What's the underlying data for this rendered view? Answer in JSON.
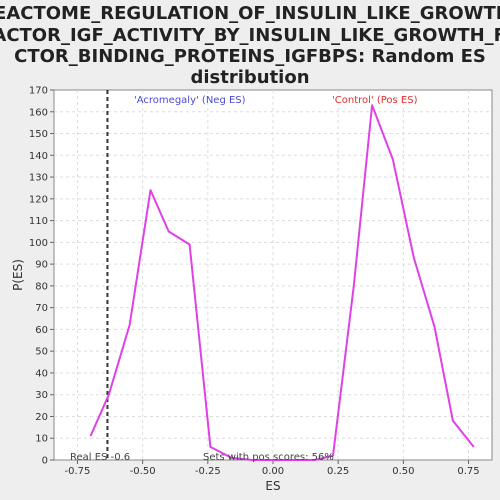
{
  "chart_data": {
    "type": "line",
    "title_lines": [
      "REACTOME_REGULATION_OF_INSULIN_LIKE_GROWTH_",
      "FACTOR_IGF_ACTIVITY_BY_INSULIN_LIKE_GROWTH_FA",
      "CTOR_BINDING_PROTEINS_IGFBPS: Random ES",
      "distribution"
    ],
    "xlabel": "ES",
    "ylabel": "P(ES)",
    "xlim": [
      -0.84,
      0.84
    ],
    "ylim": [
      0,
      170
    ],
    "x_ticks": [
      -0.75,
      -0.5,
      -0.25,
      0.0,
      0.25,
      0.5,
      0.75
    ],
    "x_tick_labels": [
      "-0.75",
      "-0.50",
      "-0.25",
      "0.00",
      "0.25",
      "0.50",
      "0.75"
    ],
    "y_ticks": [
      0,
      10,
      20,
      30,
      40,
      50,
      60,
      70,
      80,
      90,
      100,
      110,
      120,
      130,
      140,
      150,
      160,
      170
    ],
    "grid": true,
    "line_color": "#e040e8",
    "series": [
      {
        "x": [
          -0.7,
          -0.63,
          -0.55,
          -0.47,
          -0.4,
          -0.32,
          -0.24,
          -0.16,
          -0.08,
          0.0,
          0.08,
          0.16,
          0.23,
          0.31,
          0.38,
          0.46,
          0.54,
          0.62,
          0.69,
          0.77
        ],
        "values": [
          11,
          30,
          62,
          124,
          105,
          99,
          6,
          1,
          0,
          0,
          0,
          0,
          2,
          80,
          163,
          138,
          93,
          61,
          18,
          6
        ]
      }
    ],
    "real_es": -0.635,
    "annotations": {
      "neg_label": "'Acromegaly' (Neg ES)",
      "pos_label": "'Control' (Pos ES)",
      "real_es_label": "Real ES -0.6",
      "pos_scores_label": "Sets with pos scores: 56%"
    },
    "colors": {
      "neg_label": "#4a4ad8",
      "pos_label": "#e03030",
      "annotation_text": "#444444"
    }
  }
}
